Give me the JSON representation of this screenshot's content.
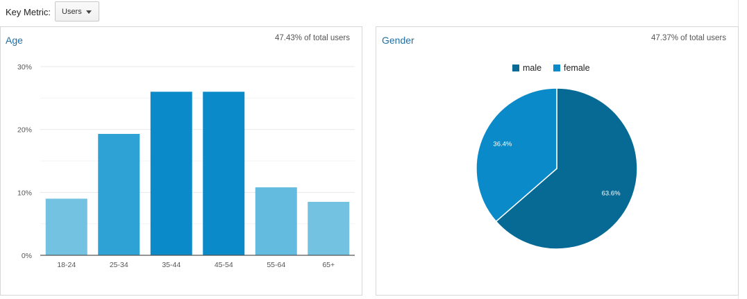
{
  "key_metric": {
    "label": "Key Metric:",
    "selected": "Users"
  },
  "age_panel": {
    "title": "Age",
    "note": "47.43% of total users"
  },
  "gender_panel": {
    "title": "Gender",
    "note": "47.37% of total users"
  },
  "colors": {
    "bar_light": "#74c2e1",
    "bar_mid": "#2ea2d4",
    "bar_dark": "#0a8ac8",
    "bar_soft": "#64bbe0",
    "male": "#076a94",
    "female": "#0a8ac8",
    "title_blue": "#1f6fa3"
  },
  "chart_data": [
    {
      "type": "bar",
      "title": "Age",
      "categories": [
        "18-24",
        "25-34",
        "35-44",
        "45-54",
        "55-64",
        "65+"
      ],
      "values": [
        9,
        19.3,
        26,
        26,
        10.8,
        8.5
      ],
      "bar_colors": [
        "#74c2e1",
        "#2ea2d4",
        "#0a8ac8",
        "#0a8ac8",
        "#64bbe0",
        "#74c2e1"
      ],
      "y_ticks": [
        "0%",
        "10%",
        "20%",
        "30%"
      ],
      "ylim": [
        0,
        30
      ],
      "grid": true
    },
    {
      "type": "pie",
      "title": "Gender",
      "series": [
        {
          "name": "male",
          "value": 63.6,
          "label": "63.6%",
          "color": "#076a94"
        },
        {
          "name": "female",
          "value": 36.4,
          "label": "36.4%",
          "color": "#0a8ac8"
        }
      ],
      "legend": "top"
    }
  ]
}
